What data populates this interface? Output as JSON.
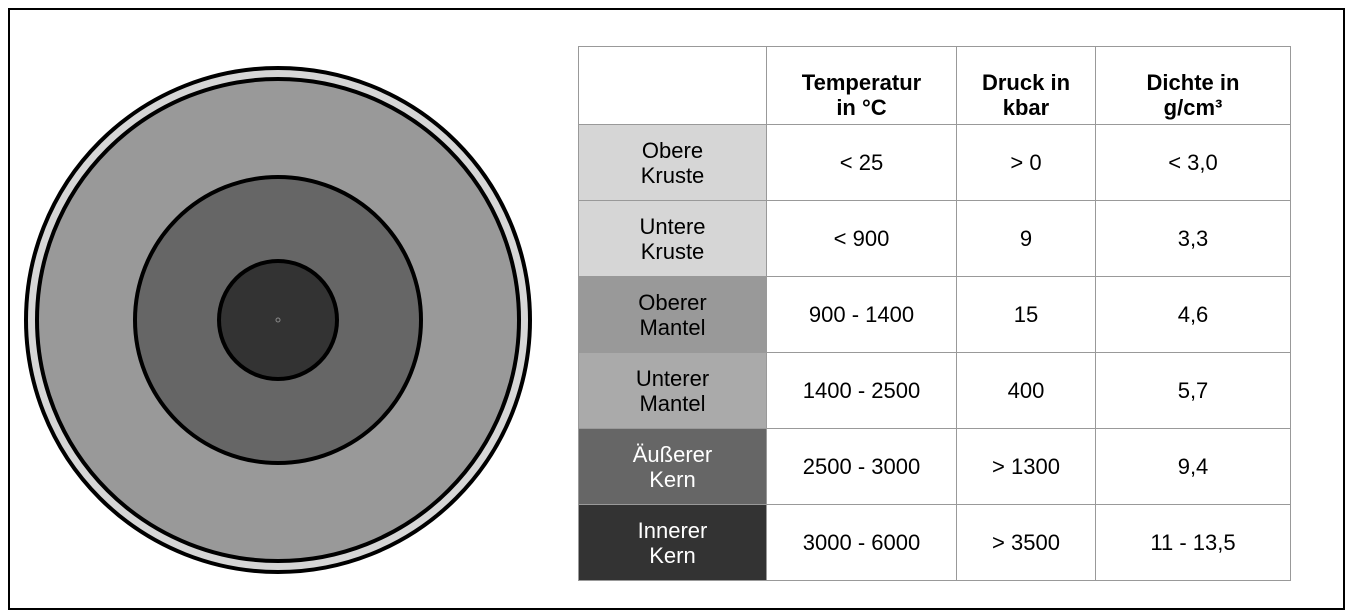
{
  "table": {
    "header": [
      "Temperatur in °C",
      "Druck in kbar",
      "Dichte in g/cm³"
    ],
    "rows": [
      [
        "Obere Kruste",
        "< 25",
        "> 0",
        "< 3,0"
      ],
      [
        "Untere Kruste",
        "< 900",
        "9",
        "3,3"
      ],
      [
        "Oberer Mantel",
        "900 - 1400",
        "15",
        "4,6"
      ],
      [
        "Unterer Mantel",
        "1400 - 2500",
        "400",
        "5,7"
      ],
      [
        "Äußerer Kern",
        "2500 - 3000",
        "> 1300",
        "9,4"
      ],
      [
        "Innerer Kern",
        "3000 - 6000",
        "> 3500",
        "11 - 13,5"
      ]
    ]
  }
}
